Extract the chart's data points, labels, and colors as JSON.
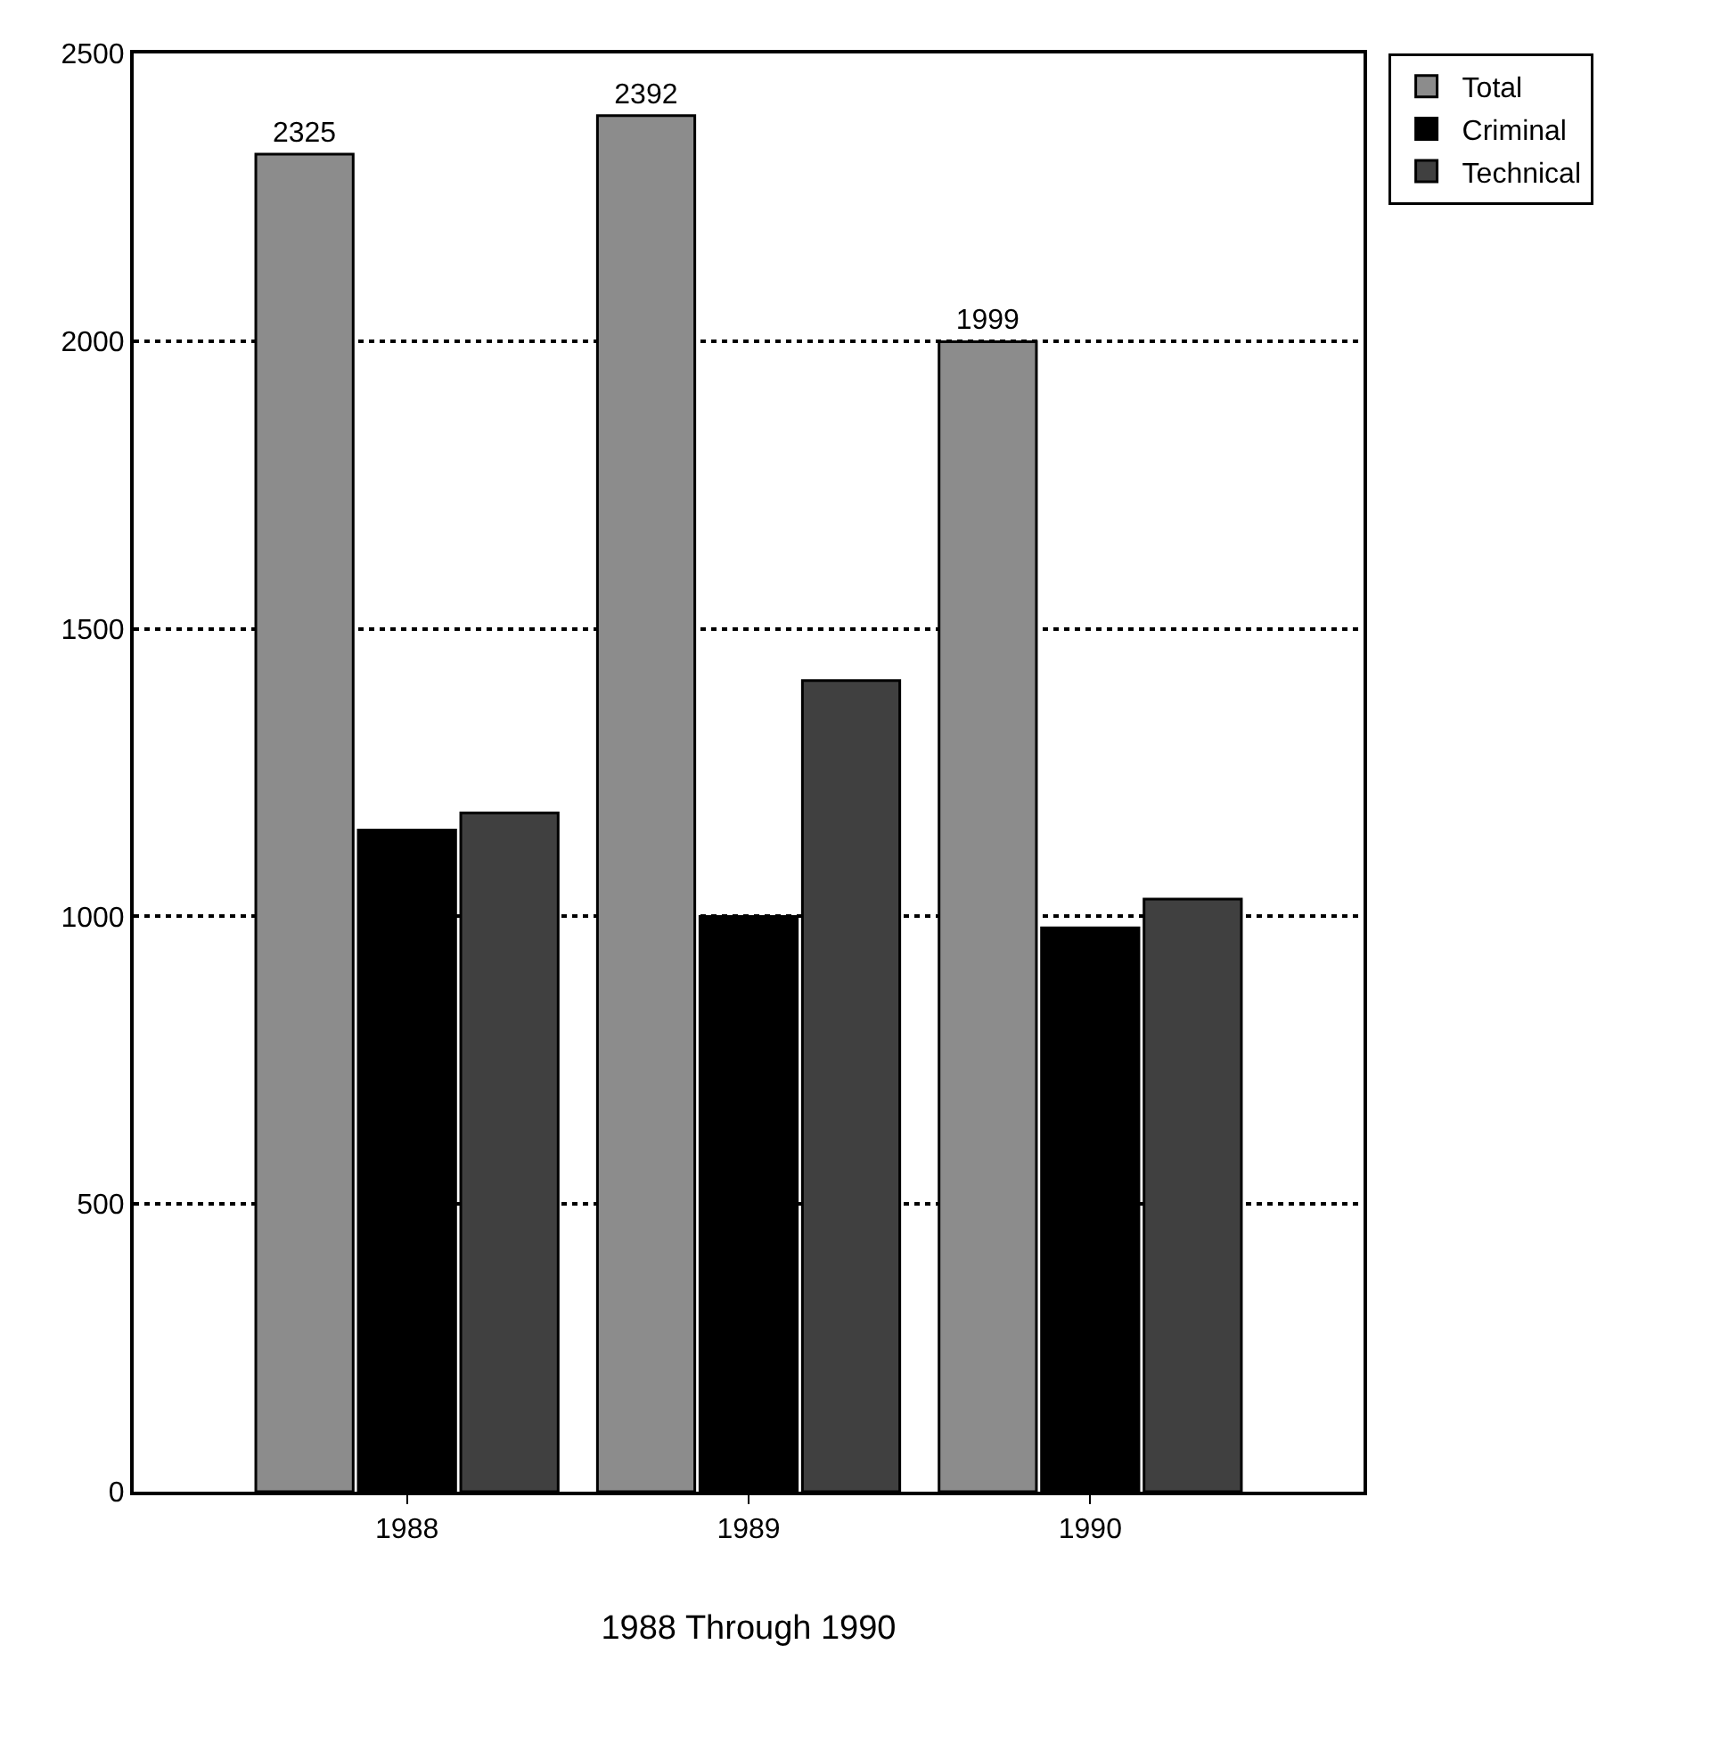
{
  "chart_data": {
    "type": "bar",
    "xlabel": "1988 Through 1990",
    "categories": [
      "1988",
      "1989",
      "1990"
    ],
    "series": [
      {
        "name": "Total",
        "color": "#8c8c8c",
        "values": [
          2325,
          2392,
          1999
        ],
        "value_labels": [
          "2325",
          "2392",
          "1999"
        ]
      },
      {
        "name": "Criminal",
        "color": "#000000",
        "values": [
          1150,
          1000,
          980
        ]
      },
      {
        "name": "Technical",
        "color": "#404040",
        "values": [
          1180,
          1410,
          1030
        ]
      }
    ],
    "ylim": [
      0,
      2500
    ],
    "yticks": [
      0,
      500,
      1000,
      1500,
      2000,
      2500
    ],
    "grid": "y",
    "legend": "top right"
  }
}
